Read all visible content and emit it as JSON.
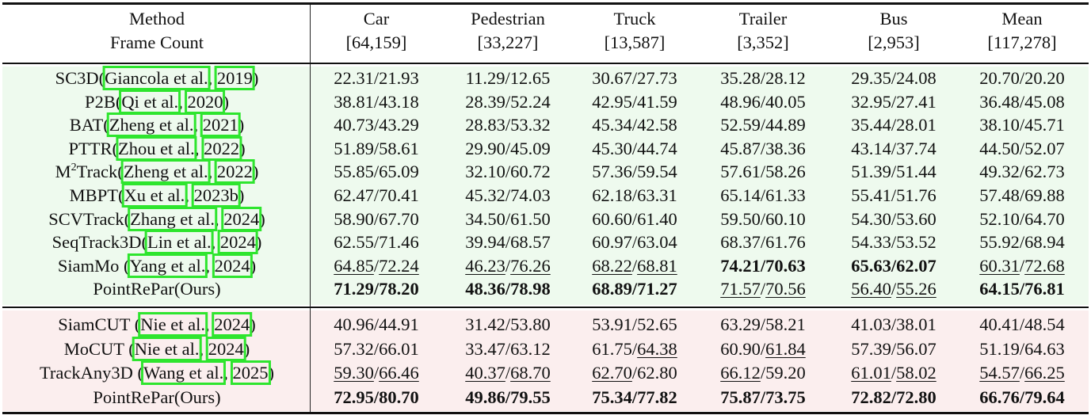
{
  "header": {
    "method_label": "Method",
    "frame_label": "Frame Count",
    "columns": [
      {
        "name": "Car",
        "frames": "[64,159]"
      },
      {
        "name": "Pedestrian",
        "frames": "[33,227]"
      },
      {
        "name": "Truck",
        "frames": "[13,587]"
      },
      {
        "name": "Trailer",
        "frames": "[3,352]"
      },
      {
        "name": "Bus",
        "frames": "[2,953]"
      },
      {
        "name": "Mean",
        "frames": "[117,278]"
      }
    ]
  },
  "colors": {
    "group1_bg": "#eefaee",
    "group2_bg": "#fbeeee",
    "citation_box": "#2ee52e",
    "rule": "#111111"
  },
  "group1": [
    {
      "name": "SC3D",
      "auth": "Giancola et al.",
      "year": "2019",
      "close": ")",
      "vals": [
        [
          "22.31",
          "21.93"
        ],
        [
          "11.29",
          "12.65"
        ],
        [
          "30.67",
          "27.73"
        ],
        [
          "35.28",
          "28.12"
        ],
        [
          "29.35",
          "24.08"
        ],
        [
          "20.70",
          "20.20"
        ]
      ],
      "fmt": [
        [
          "",
          ""
        ],
        [
          "",
          ""
        ],
        [
          "",
          ""
        ],
        [
          "",
          ""
        ],
        [
          "",
          ""
        ],
        [
          "",
          ""
        ]
      ]
    },
    {
      "name": "P2B",
      "auth": "Qi et al.",
      "year": "2020",
      "close": ")",
      "vals": [
        [
          "38.81",
          "43.18"
        ],
        [
          "28.39",
          "52.24"
        ],
        [
          "42.95",
          "41.59"
        ],
        [
          "48.96",
          "40.05"
        ],
        [
          "32.95",
          "27.41"
        ],
        [
          "36.48",
          "45.08"
        ]
      ],
      "fmt": [
        [
          "",
          ""
        ],
        [
          "",
          ""
        ],
        [
          "",
          ""
        ],
        [
          "",
          ""
        ],
        [
          "",
          ""
        ],
        [
          "",
          ""
        ]
      ]
    },
    {
      "name": "BAT",
      "auth": "Zheng et al.",
      "year": "2021",
      "close": ")",
      "vals": [
        [
          "40.73",
          "43.29"
        ],
        [
          "28.83",
          "53.32"
        ],
        [
          "45.34",
          "42.58"
        ],
        [
          "52.59",
          "44.89"
        ],
        [
          "35.44",
          "28.01"
        ],
        [
          "38.10",
          "45.71"
        ]
      ],
      "fmt": [
        [
          "",
          ""
        ],
        [
          "",
          ""
        ],
        [
          "",
          ""
        ],
        [
          "",
          ""
        ],
        [
          "",
          ""
        ],
        [
          "",
          ""
        ]
      ]
    },
    {
      "name": "PTTR",
      "auth": "Zhou et al.",
      "year": "2022",
      "close": ")",
      "vals": [
        [
          "51.89",
          "58.61"
        ],
        [
          "29.90",
          "45.09"
        ],
        [
          "45.30",
          "44.74"
        ],
        [
          "45.87",
          "38.36"
        ],
        [
          "43.14",
          "37.74"
        ],
        [
          "44.50",
          "52.07"
        ]
      ],
      "fmt": [
        [
          "",
          ""
        ],
        [
          "",
          ""
        ],
        [
          "",
          ""
        ],
        [
          "",
          ""
        ],
        [
          "",
          ""
        ],
        [
          "",
          ""
        ]
      ]
    },
    {
      "name": "M",
      "sup": "2",
      "name2": "Track",
      "auth": "Zheng et al.",
      "year": "2022",
      "close": ")",
      "vals": [
        [
          "55.85",
          "65.09"
        ],
        [
          "32.10",
          "60.72"
        ],
        [
          "57.36",
          "59.54"
        ],
        [
          "57.61",
          "58.26"
        ],
        [
          "51.39",
          "51.44"
        ],
        [
          "49.32",
          "62.73"
        ]
      ],
      "fmt": [
        [
          "",
          ""
        ],
        [
          "",
          ""
        ],
        [
          "",
          ""
        ],
        [
          "",
          ""
        ],
        [
          "",
          ""
        ],
        [
          "",
          ""
        ]
      ]
    },
    {
      "name": "MBPT",
      "auth": "Xu et al.",
      "year": "2023b",
      "close": ")",
      "vals": [
        [
          "62.47",
          "70.41"
        ],
        [
          "45.32",
          "74.03"
        ],
        [
          "62.18",
          "63.31"
        ],
        [
          "65.14",
          "61.33"
        ],
        [
          "55.41",
          "51.76"
        ],
        [
          "57.48",
          "69.88"
        ]
      ],
      "fmt": [
        [
          "",
          ""
        ],
        [
          "",
          ""
        ],
        [
          "",
          ""
        ],
        [
          "",
          ""
        ],
        [
          "",
          ""
        ],
        [
          "",
          ""
        ]
      ]
    },
    {
      "name": "SCVTrack",
      "auth": "Zhang et al.",
      "year": "2024",
      "close": ")",
      "vals": [
        [
          "58.90",
          "67.70"
        ],
        [
          "34.50",
          "61.50"
        ],
        [
          "60.60",
          "61.40"
        ],
        [
          "59.50",
          "60.10"
        ],
        [
          "54.30",
          "53.60"
        ],
        [
          "52.10",
          "64.70"
        ]
      ],
      "fmt": [
        [
          "",
          ""
        ],
        [
          "",
          ""
        ],
        [
          "",
          ""
        ],
        [
          "",
          ""
        ],
        [
          "",
          ""
        ],
        [
          "",
          ""
        ]
      ]
    },
    {
      "name": "SeqTrack3D",
      "auth": "Lin et al.",
      "year": "2024",
      "close": ")",
      "vals": [
        [
          "62.55",
          "71.46"
        ],
        [
          "39.94",
          "68.57"
        ],
        [
          "60.97",
          "63.04"
        ],
        [
          "68.37",
          "61.76"
        ],
        [
          "54.33",
          "53.52"
        ],
        [
          "55.92",
          "68.94"
        ]
      ],
      "fmt": [
        [
          "",
          ""
        ],
        [
          "",
          ""
        ],
        [
          "",
          ""
        ],
        [
          "",
          ""
        ],
        [
          "",
          ""
        ],
        [
          "",
          ""
        ]
      ]
    },
    {
      "name": "SiamMo ",
      "auth": "Yang et al.",
      "year": "2024",
      "close": ")",
      "vals": [
        [
          "64.85",
          "72.24"
        ],
        [
          "46.23",
          "76.26"
        ],
        [
          "68.22",
          "68.81"
        ],
        [
          "74.21",
          "70.63"
        ],
        [
          "65.63",
          "62.07"
        ],
        [
          "60.31",
          "72.68"
        ]
      ],
      "fmt": [
        [
          "u",
          "u"
        ],
        [
          "u",
          "u"
        ],
        [
          "u",
          "u"
        ],
        [
          "b",
          "b"
        ],
        [
          "b",
          "b"
        ],
        [
          "u",
          "u"
        ]
      ]
    },
    {
      "name": "PointRePar(Ours)",
      "vals": [
        [
          "71.29",
          "78.20"
        ],
        [
          "48.36",
          "78.98"
        ],
        [
          "68.89",
          "71.27"
        ],
        [
          "71.57",
          "70.56"
        ],
        [
          "56.40",
          "55.26"
        ],
        [
          "64.15",
          "76.81"
        ]
      ],
      "fmt": [
        [
          "b",
          "b"
        ],
        [
          "b",
          "b"
        ],
        [
          "b",
          "b"
        ],
        [
          "u",
          "u"
        ],
        [
          "u",
          "u"
        ],
        [
          "b",
          "b"
        ]
      ]
    }
  ],
  "group2": [
    {
      "name": "SiamCUT ",
      "auth": "Nie et al.",
      "year": "2024",
      "close": ")",
      "vals": [
        [
          "40.96",
          "44.91"
        ],
        [
          "31.42",
          "53.80"
        ],
        [
          "53.91",
          "52.65"
        ],
        [
          "63.29",
          "58.21"
        ],
        [
          "41.03",
          "38.01"
        ],
        [
          "40.41",
          "48.54"
        ]
      ],
      "fmt": [
        [
          "",
          ""
        ],
        [
          "",
          ""
        ],
        [
          "",
          ""
        ],
        [
          "",
          ""
        ],
        [
          "",
          ""
        ],
        [
          "",
          ""
        ]
      ]
    },
    {
      "name": "MoCUT ",
      "auth": "Nie et al.",
      "year": "2024",
      "close": ")",
      "vals": [
        [
          "57.32",
          "66.01"
        ],
        [
          "33.47",
          "63.12"
        ],
        [
          "61.75",
          "64.38"
        ],
        [
          "60.90",
          "61.84"
        ],
        [
          "57.39",
          "56.07"
        ],
        [
          "51.19",
          "64.63"
        ]
      ],
      "fmt": [
        [
          "",
          ""
        ],
        [
          "",
          ""
        ],
        [
          "",
          "u"
        ],
        [
          "",
          "u"
        ],
        [
          "",
          ""
        ],
        [
          "",
          ""
        ]
      ]
    },
    {
      "name": "TrackAny3D ",
      "auth": "Wang et al.",
      "year": "2025",
      "close": ")",
      "vals": [
        [
          "59.30",
          "66.46"
        ],
        [
          "40.37",
          "68.70"
        ],
        [
          "62.70",
          "62.80"
        ],
        [
          "66.12",
          "59.20"
        ],
        [
          "61.01",
          "58.02"
        ],
        [
          "54.57",
          "66.25"
        ]
      ],
      "fmt": [
        [
          "u",
          "u"
        ],
        [
          "u",
          "u"
        ],
        [
          "u",
          ""
        ],
        [
          "u",
          ""
        ],
        [
          "u",
          "u"
        ],
        [
          "u",
          "u"
        ]
      ]
    },
    {
      "name": "PointRePar(Ours)",
      "vals": [
        [
          "72.95",
          "80.70"
        ],
        [
          "49.86",
          "79.55"
        ],
        [
          "75.34",
          "77.82"
        ],
        [
          "75.87",
          "73.75"
        ],
        [
          "72.82",
          "72.80"
        ],
        [
          "66.76",
          "79.64"
        ]
      ],
      "fmt": [
        [
          "b",
          "b"
        ],
        [
          "b",
          "b"
        ],
        [
          "b",
          "b"
        ],
        [
          "b",
          "b"
        ],
        [
          "b",
          "b"
        ],
        [
          "b",
          "b"
        ]
      ]
    }
  ]
}
